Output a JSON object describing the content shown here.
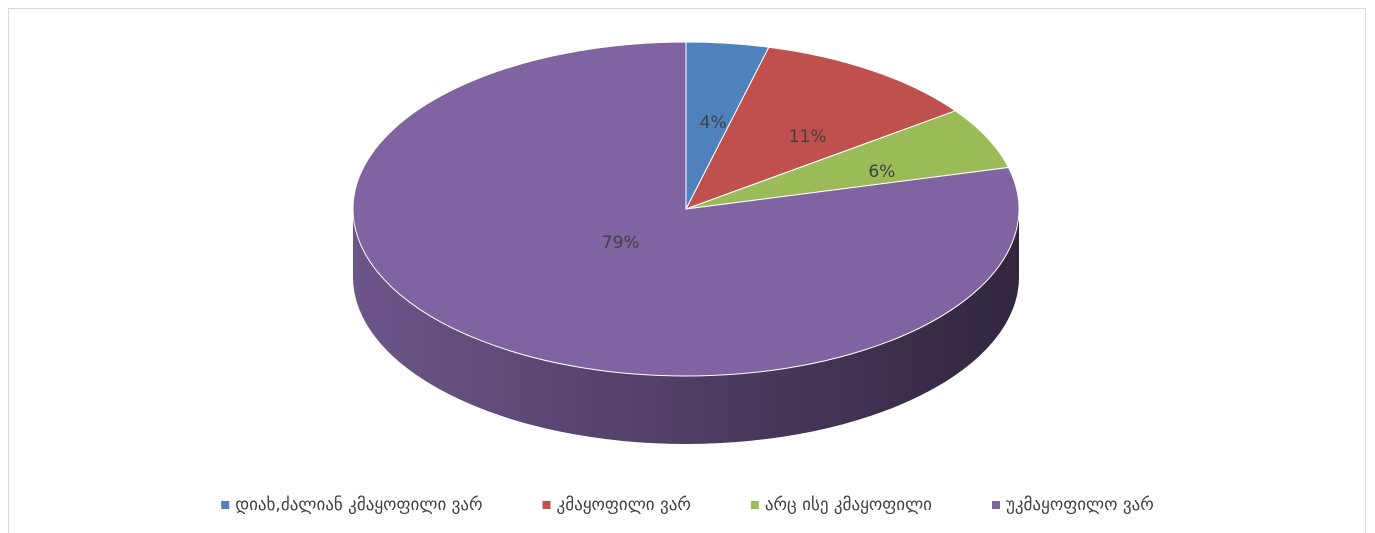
{
  "chart_data": {
    "type": "pie",
    "categories": [
      "დიახ,ძალიან კმაყოფილი ვარ",
      "კმაყოფილი ვარ",
      "არც ისე კმაყოფილი",
      "უკმაყოფილო ვარ"
    ],
    "values": [
      4,
      11,
      6,
      79
    ],
    "value_labels": [
      "4%",
      "11%",
      "6%",
      "79%"
    ],
    "colors": [
      "#4f81bd",
      "#c0504d",
      "#9bbb59",
      "#8064a2"
    ],
    "legend": "bottom"
  }
}
